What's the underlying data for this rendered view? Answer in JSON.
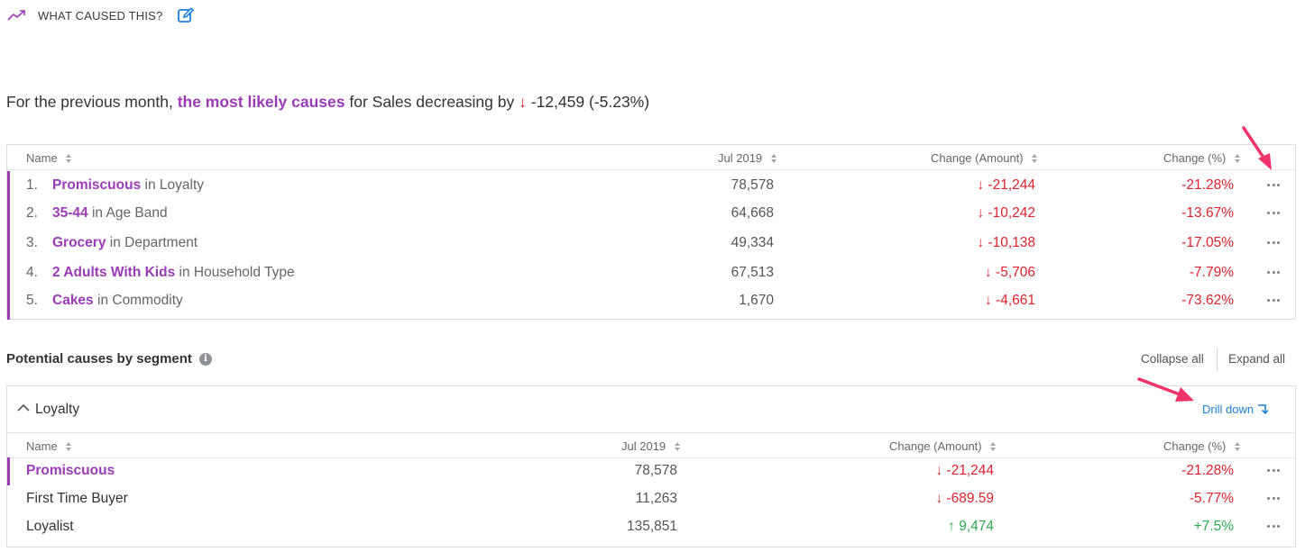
{
  "header": {
    "title": "WHAT CAUSED THIS?"
  },
  "summary": {
    "prefix": "For the previous month,",
    "highlight": "the most likely causes",
    "middle": "for Sales decreasing by",
    "change": "-12,459 (-5.23%)"
  },
  "top_table": {
    "columns": [
      "Name",
      "Jul 2019",
      "Change (Amount)",
      "Change (%)"
    ],
    "rows": [
      {
        "index": "1.",
        "segment": "Promiscuous",
        "dimension": "in Loyalty",
        "value": "78,578",
        "amount": "-21,244",
        "percent": "-21.28%"
      },
      {
        "index": "2.",
        "segment": "35-44",
        "dimension": "in Age Band",
        "value": "64,668",
        "amount": "-10,242",
        "percent": "-13.67%"
      },
      {
        "index": "3.",
        "segment": "Grocery",
        "dimension": "in Department",
        "value": "49,334",
        "amount": "-10,138",
        "percent": "-17.05%"
      },
      {
        "index": "4.",
        "segment": "2 Adults With Kids",
        "dimension": "in Household Type",
        "value": "67,513",
        "amount": "-5,706",
        "percent": "-7.79%"
      },
      {
        "index": "5.",
        "segment": "Cakes",
        "dimension": "in Commodity",
        "value": "1,670",
        "amount": "-4,661",
        "percent": "-73.62%"
      }
    ]
  },
  "segments": {
    "title": "Potential causes by segment",
    "collapse_all": "Collapse all",
    "expand_all": "Expand all",
    "group": {
      "label": "Loyalty",
      "drill_down": "Drill down",
      "columns": [
        "Name",
        "Jul 2019",
        "Change (Amount)",
        "Change (%)"
      ],
      "rows": [
        {
          "name": "Promiscuous",
          "value": "78,578",
          "amount": "-21,244",
          "percent": "-21.28%",
          "direction": "down"
        },
        {
          "name": "First Time Buyer",
          "value": "11,263",
          "amount": "-689.59",
          "percent": "-5.77%",
          "direction": "down"
        },
        {
          "name": "Loyalist",
          "value": "135,851",
          "amount": "9,474",
          "percent": "+7.5%",
          "direction": "up"
        }
      ]
    }
  },
  "colors": {
    "accent_purple": "#9b3bb6",
    "negative_red": "#e0232e",
    "positive_green": "#2eaa4e",
    "link_blue": "#1f80d8",
    "annotation_pink": "#f0336a"
  },
  "icons": {
    "trend": "trend-line-icon",
    "edit": "edit-icon",
    "sort": "sort-icon",
    "more": "more-options-icon",
    "info": "info-icon",
    "collapse": "chevron-up-icon",
    "drill": "drill-down-arrow-icon",
    "down": "arrow-down-icon",
    "up": "arrow-up-icon"
  }
}
